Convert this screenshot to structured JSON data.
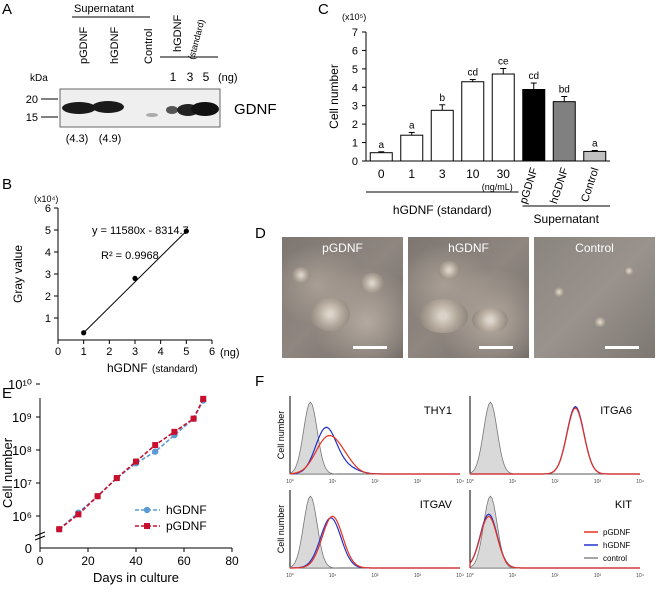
{
  "panel_labels": {
    "a": "A",
    "b": "B",
    "c": "C",
    "d": "D",
    "e": "E",
    "f": "F"
  },
  "western": {
    "supernatant": "Supernatant",
    "lanes": [
      "pGDNF",
      "hGDNF",
      "Control"
    ],
    "standard": "hGDNF",
    "standard_sub": "(standard)",
    "amounts": [
      "1",
      "3",
      "5"
    ],
    "unit": "(ng)",
    "kda": "kDa",
    "markers": [
      "20",
      "15"
    ],
    "protein": "GDNF",
    "estimates": [
      "(4.3)",
      "(4.9)"
    ]
  },
  "colors": {
    "pgdnf": "#e8311f",
    "hgdnf": "#2233cc",
    "control": "#888888",
    "e_pgdnf": "#c8102e",
    "e_hgdnf": "#5b9bd5"
  },
  "chart_data": [
    {
      "panel": "B",
      "type": "scatter",
      "x": [
        1,
        3,
        5
      ],
      "y": [
        0.33,
        2.8,
        4.95
      ],
      "multiplier": "(x10⁴)",
      "equation": "y = 11580x - 8314.7",
      "r2": "R² = 0.9968",
      "xlabel": "hGDNF",
      "xlabel_sub": "(standard)",
      "ylabel": "Gray value",
      "xunit": "(ng)",
      "xticks": [
        "0",
        "1",
        "2",
        "3",
        "4",
        "5",
        "6"
      ],
      "yticks": [
        "1",
        "2",
        "3",
        "4",
        "5",
        "6"
      ],
      "xlim": [
        0,
        6
      ],
      "ylim": [
        0,
        6
      ]
    },
    {
      "panel": "C",
      "type": "bar",
      "categories": [
        "0",
        "1",
        "3",
        "10",
        "30",
        "pGDNF",
        "hGDNF",
        "Control"
      ],
      "values": [
        0.45,
        1.4,
        2.75,
        4.3,
        4.72,
        3.88,
        3.22,
        0.52
      ],
      "errors": [
        0.05,
        0.15,
        0.3,
        0.12,
        0.3,
        0.35,
        0.28,
        0.05
      ],
      "letters": [
        "a",
        "a",
        "b",
        "cd",
        "ce",
        "cd",
        "bd",
        "a"
      ],
      "fills": [
        "#ffffff",
        "#ffffff",
        "#ffffff",
        "#ffffff",
        "#ffffff",
        "#000000",
        "#808080",
        "#c0c0c0"
      ],
      "ylabel": "Cell number",
      "multiplier": "(x10⁵)",
      "yticks": [
        "0",
        "1",
        "2",
        "3",
        "4",
        "5",
        "6",
        "7"
      ],
      "ylim": [
        0,
        7
      ],
      "unit": "(ng/mL)",
      "group1": "hGDNF (standard)",
      "group2": "Supernatant"
    },
    {
      "panel": "E",
      "type": "line",
      "xlabel": "Days in culture",
      "ylabel": "Cell number",
      "xticks": [
        "0",
        "20",
        "40",
        "60",
        "80"
      ],
      "yticks": [
        "10⁶",
        "10⁷",
        "10⁸",
        "10⁹",
        "10¹⁰"
      ],
      "ybreak": "0",
      "series": [
        {
          "name": "hGDNF",
          "x": [
            8,
            16,
            24,
            32,
            40,
            48,
            56,
            64,
            68
          ],
          "y": [
            5.6,
            6.1,
            6.6,
            7.15,
            7.6,
            7.95,
            8.45,
            8.95,
            9.5
          ]
        },
        {
          "name": "pGDNF",
          "x": [
            8,
            16,
            24,
            32,
            40,
            48,
            56,
            64,
            68
          ],
          "y": [
            5.6,
            6.05,
            6.6,
            7.15,
            7.65,
            8.15,
            8.55,
            8.95,
            9.55
          ]
        }
      ]
    },
    {
      "panel": "F",
      "type": "area",
      "markers": [
        "THY1",
        "ITGA6",
        "ITGAV",
        "KIT"
      ],
      "ylabel": "Cell number",
      "xticks": [
        "10⁰",
        "10¹",
        "10²",
        "10³",
        "10⁴"
      ],
      "legend": [
        "pGDNF",
        "hGDNF",
        "control"
      ]
    }
  ],
  "micro": {
    "titles": [
      "pGDNF",
      "hGDNF",
      "Control"
    ]
  }
}
